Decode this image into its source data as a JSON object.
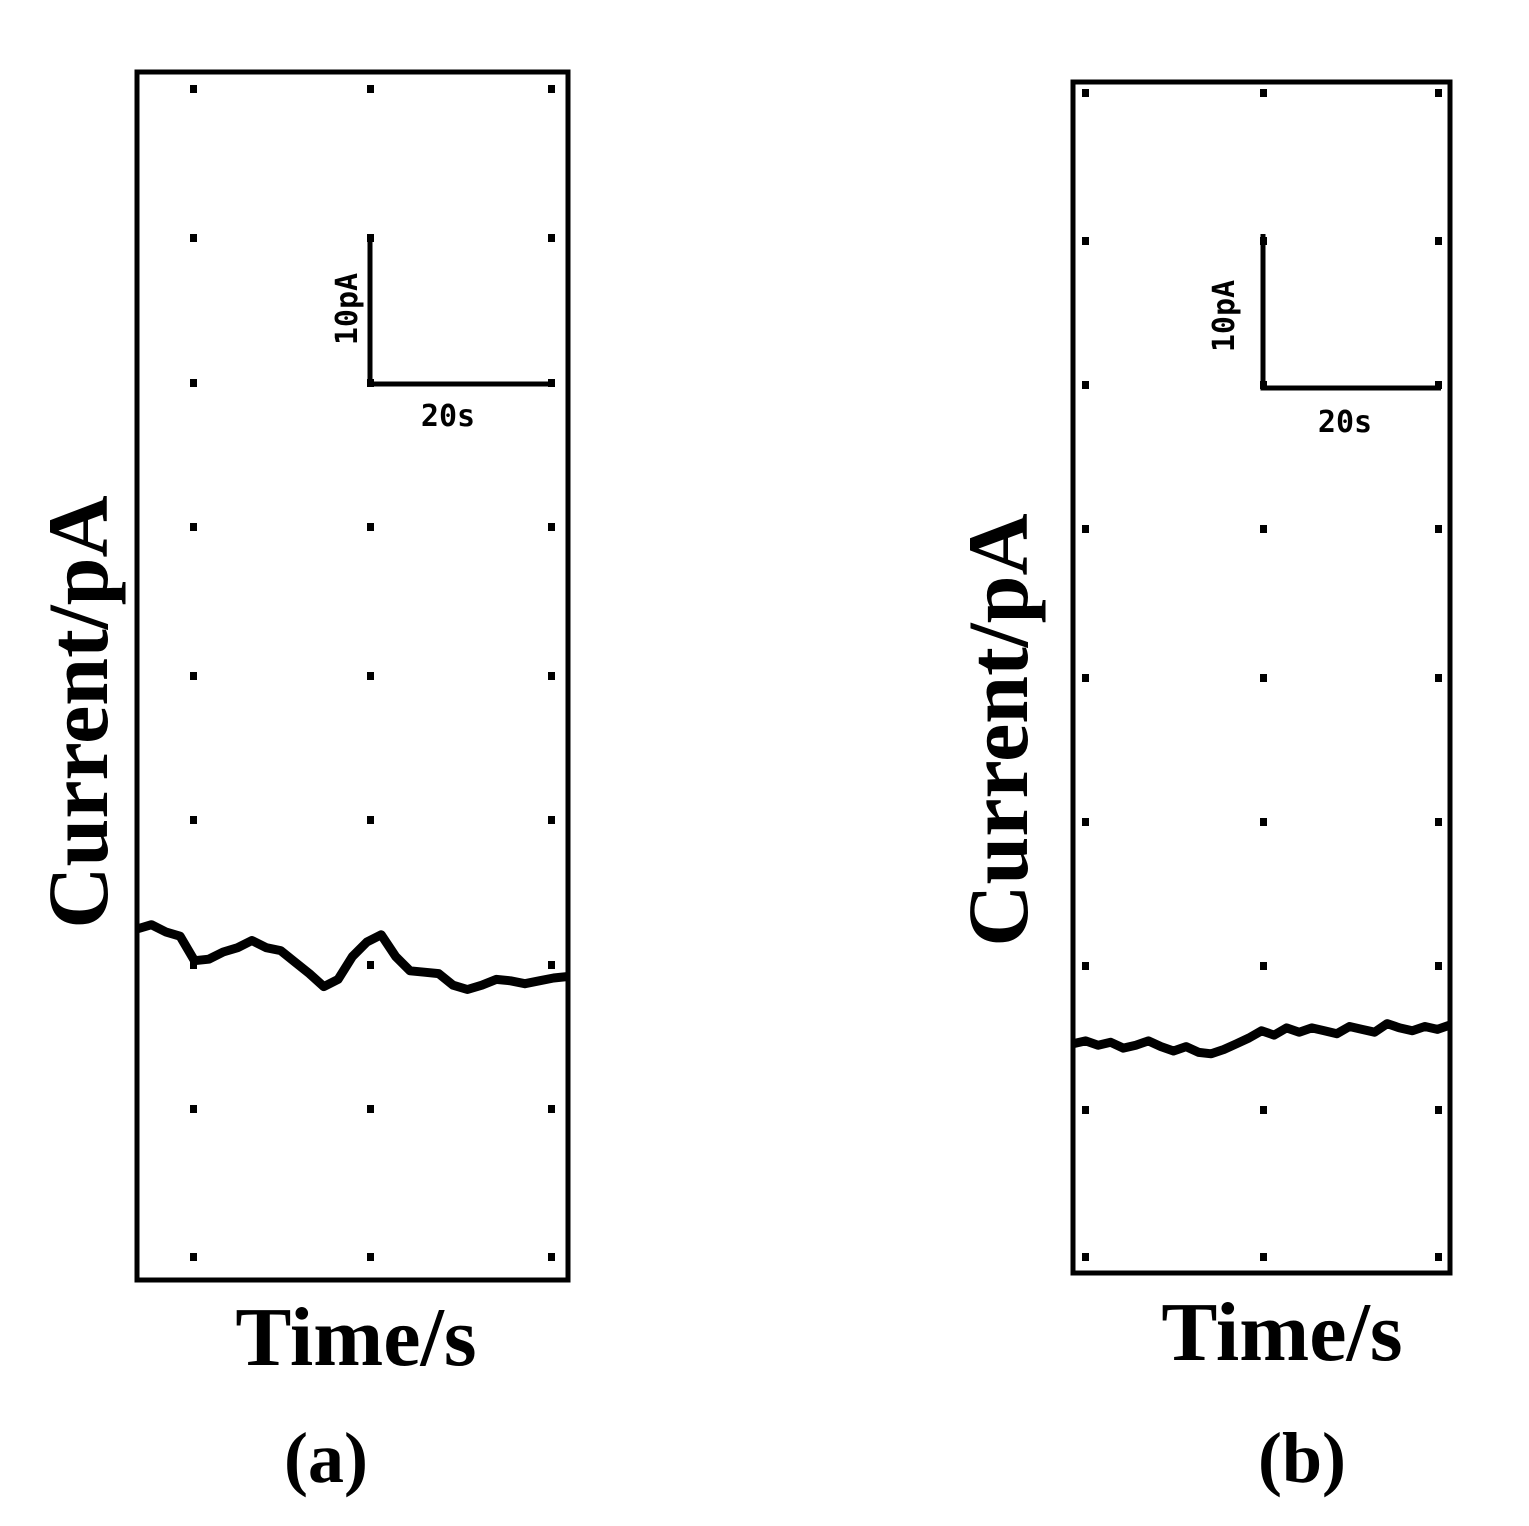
{
  "chart_data": [
    {
      "type": "line",
      "panel_label": "(a)",
      "xlabel": "Time/s",
      "ylabel": "Current/pA",
      "grid": "dotted",
      "scale_bar": {
        "current_label": "10pA",
        "time_label": "20s",
        "current_value": 10,
        "time_value": 20
      },
      "series": [
        {
          "color": "#000000",
          "x": [
            0,
            4,
            8,
            12,
            16,
            20,
            24,
            28,
            32,
            36,
            40,
            44,
            48,
            52,
            56,
            60,
            64,
            68,
            72,
            76,
            80,
            84,
            88,
            92,
            96,
            100,
            104,
            108,
            112,
            116,
            120
          ],
          "y": [
            12.5,
            12.8,
            12.3,
            12.0,
            10.3,
            10.4,
            10.9,
            11.2,
            11.7,
            11.2,
            11.0,
            10.2,
            9.4,
            8.5,
            9.0,
            10.6,
            11.6,
            12.1,
            10.6,
            9.6,
            9.5,
            9.4,
            8.6,
            8.3,
            8.6,
            9.0,
            8.9,
            8.7,
            8.9,
            9.1,
            9.2
          ]
        }
      ]
    },
    {
      "type": "line",
      "panel_label": "(b)",
      "xlabel": "Time/s",
      "ylabel": "Current/pA",
      "grid": "dotted",
      "scale_bar": {
        "current_label": "10pA",
        "time_label": "20s",
        "current_value": 10,
        "time_value": 20
      },
      "series": [
        {
          "color": "#000000",
          "x": [
            0,
            4,
            8,
            12,
            16,
            20,
            24,
            28,
            32,
            36,
            40,
            44,
            48,
            52,
            56,
            60,
            64,
            68,
            72,
            76,
            80,
            84,
            88,
            92,
            96,
            100,
            104,
            108,
            112,
            116,
            120
          ],
          "y": [
            4.6,
            4.8,
            4.5,
            4.7,
            4.3,
            4.5,
            4.8,
            4.4,
            4.1,
            4.4,
            4.0,
            3.9,
            4.2,
            4.6,
            5.0,
            5.5,
            5.2,
            5.7,
            5.4,
            5.7,
            5.5,
            5.3,
            5.8,
            5.6,
            5.4,
            6.0,
            5.7,
            5.5,
            5.8,
            5.6,
            5.9
          ]
        }
      ]
    }
  ]
}
